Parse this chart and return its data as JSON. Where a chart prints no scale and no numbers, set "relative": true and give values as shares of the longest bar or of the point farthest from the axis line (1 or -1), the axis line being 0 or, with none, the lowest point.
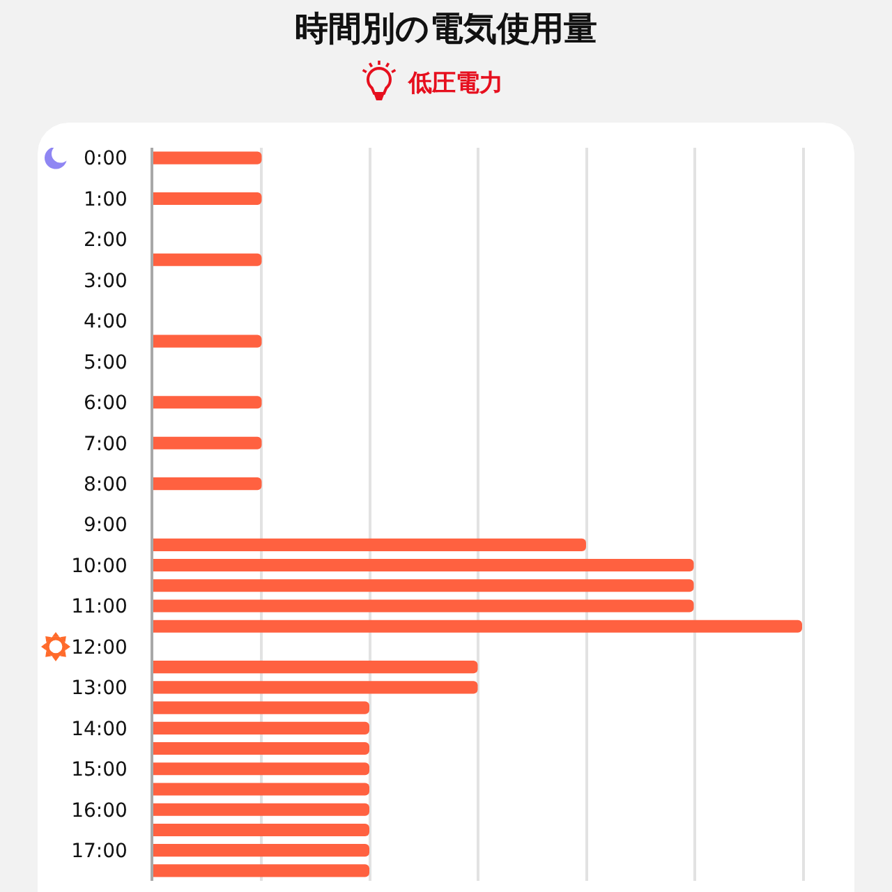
{
  "chart_data": {
    "type": "bar",
    "orientation": "horizontal",
    "relative": true,
    "title": "時間別の電気使用量",
    "subtitle": "低圧電力",
    "categories": [
      "0:00",
      null,
      "1:00",
      null,
      "2:00",
      null,
      "3:00",
      null,
      "4:00",
      null,
      "5:00",
      null,
      "6:00",
      null,
      "7:00",
      null,
      "8:00",
      null,
      "9:00",
      null,
      "10:00",
      null,
      "11:00",
      null,
      "12:00",
      null,
      "13:00",
      null,
      "14:00",
      null,
      "15:00",
      null,
      "16:00",
      null,
      "17:00",
      null
    ],
    "values": [
      0.167,
      null,
      0.167,
      null,
      null,
      0.167,
      null,
      null,
      null,
      0.167,
      null,
      null,
      0.167,
      null,
      0.167,
      null,
      0.167,
      null,
      null,
      0.667,
      0.833,
      0.833,
      0.833,
      1,
      null,
      0.5,
      0.5,
      0.333,
      0.333,
      0.333,
      0.333,
      0.333,
      0.333,
      0.333,
      0.333,
      0.333
    ],
    "color": "#ff6140",
    "grid": "x",
    "tick_labels": "y"
  }
}
